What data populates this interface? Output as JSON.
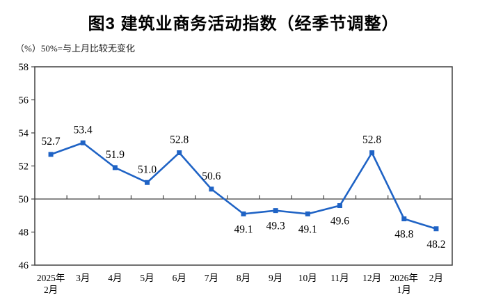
{
  "title": "图3  建筑业商务活动指数（经季节调整）",
  "subtitle": "（%）50%=与上月比较无变化",
  "colors": {
    "line": "#1f63c5",
    "marker": "#1f63c5",
    "axis": "#404040",
    "reference_line": "#404040",
    "text": "#000000"
  },
  "chart_data": {
    "type": "line",
    "title": "图3  建筑业商务活动指数（经季节调整）",
    "subtitle": "（%）50%=与上月比较无变化",
    "categories": [
      "2025年\n2月",
      "3月",
      "4月",
      "5月",
      "6月",
      "7月",
      "8月",
      "9月",
      "10月",
      "11月",
      "12月",
      "2026年\n1月",
      "2月"
    ],
    "values": [
      52.7,
      53.4,
      51.9,
      51.0,
      52.8,
      50.6,
      49.1,
      49.3,
      49.1,
      49.6,
      52.8,
      48.8,
      48.2
    ],
    "value_labels": [
      "52.7",
      "53.4",
      "51.9",
      "51.0",
      "52.8",
      "50.6",
      "49.1",
      "49.3",
      "49.1",
      "49.6",
      "52.8",
      "48.8",
      "48.2"
    ],
    "label_positions": [
      "above",
      "above",
      "above",
      "above",
      "above",
      "above",
      "below",
      "below",
      "below",
      "below",
      "above",
      "below",
      "below"
    ],
    "yticks": [
      "58",
      "56",
      "54",
      "52",
      "50",
      "48",
      "46"
    ],
    "ylim": [
      46,
      58
    ],
    "reference_line": 50,
    "marker": "square",
    "grid": false,
    "legend": null
  }
}
